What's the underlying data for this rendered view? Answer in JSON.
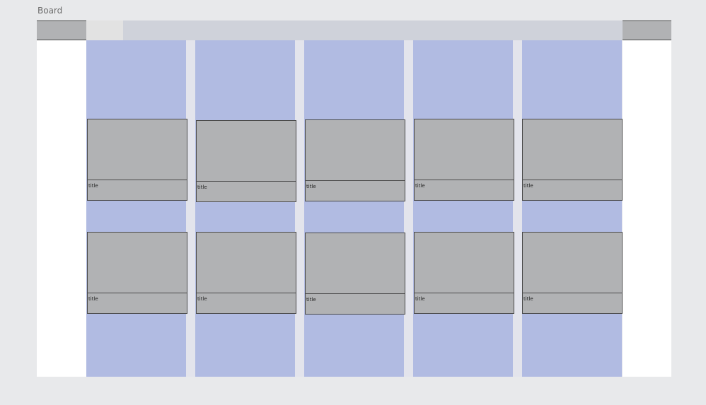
{
  "board": {
    "label": "Board"
  },
  "grid": {
    "rows": [
      {
        "cards": [
          {
            "title": "title"
          },
          {
            "title": "title"
          },
          {
            "title": "title"
          },
          {
            "title": "title"
          },
          {
            "title": "title"
          }
        ]
      },
      {
        "cards": [
          {
            "title": "title"
          },
          {
            "title": "title"
          },
          {
            "title": "title"
          },
          {
            "title": "title"
          },
          {
            "title": "title"
          }
        ]
      }
    ]
  },
  "colors": {
    "background": "#e8e9eb",
    "frame": "#ffffff",
    "topbar": "#b1b2b4",
    "topbar_inner": "#cfd2da",
    "column": "#b1bbe2",
    "card": "#b1b2b4",
    "border": "#4a4a4a"
  }
}
